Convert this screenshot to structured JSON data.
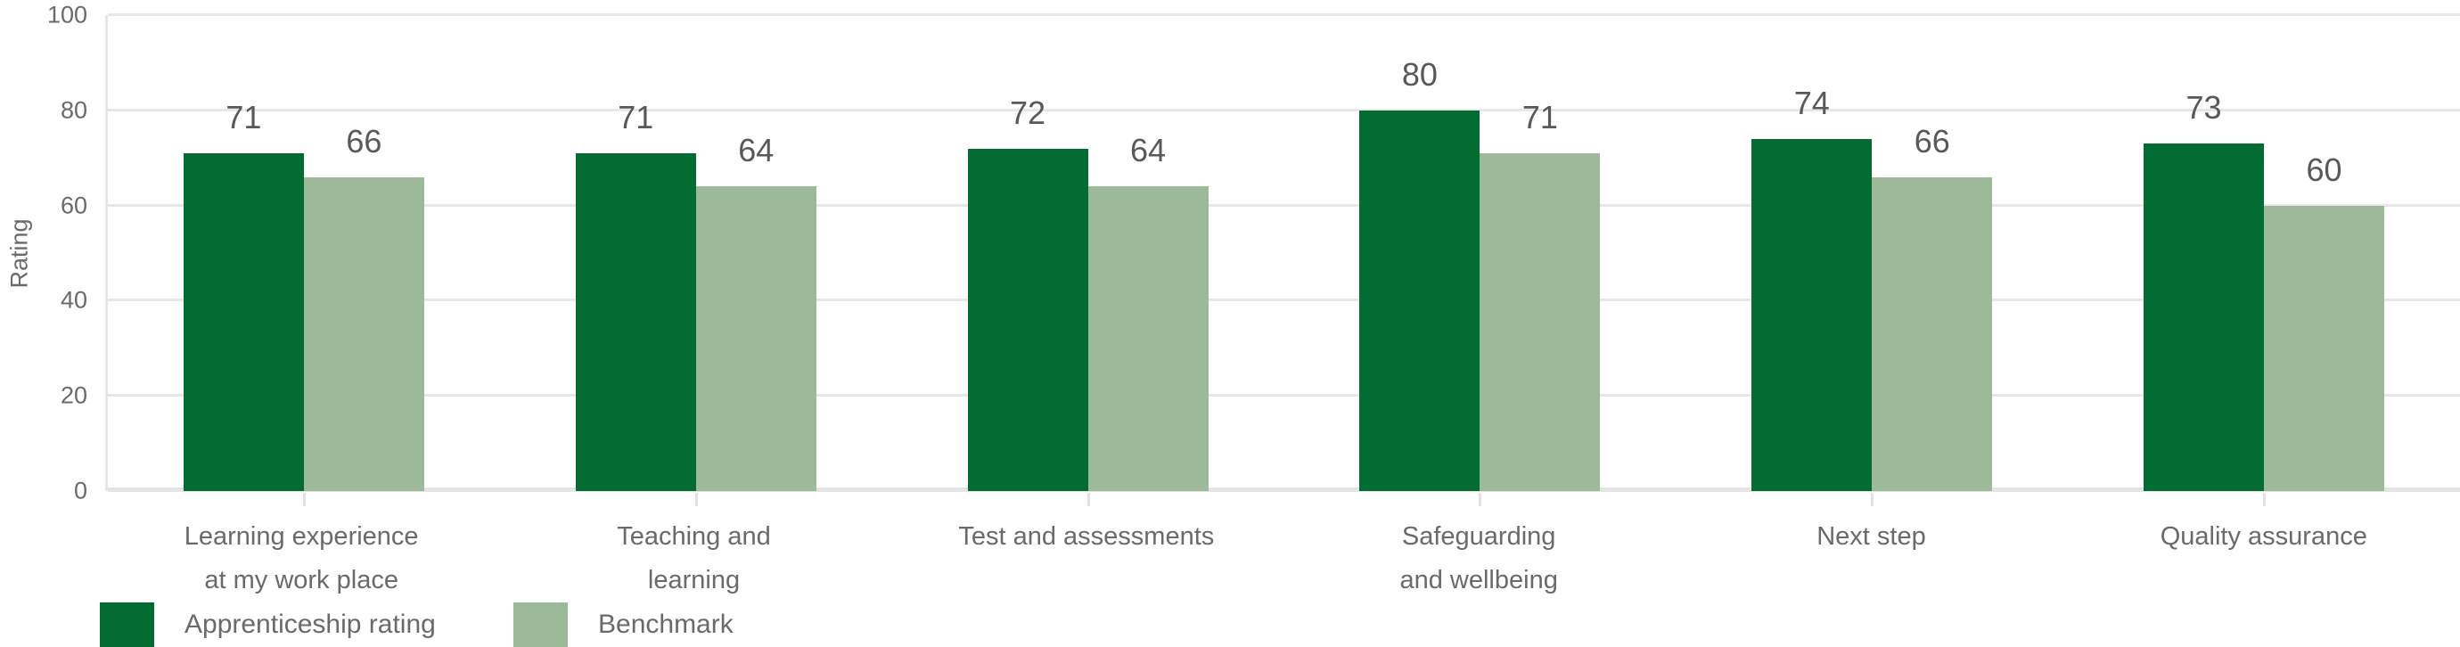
{
  "chart_data": {
    "type": "bar",
    "title": "",
    "categories": [
      "Learning experience\nat my work place",
      "Teaching and\nlearning",
      "Test and assessments",
      "Safeguarding\nand wellbeing",
      "Next step",
      "Quality assurance"
    ],
    "series": [
      {
        "name": "Apprenticeship rating",
        "color": "#046b32",
        "values": [
          71,
          71,
          72,
          80,
          74,
          73
        ]
      },
      {
        "name": "Benchmark",
        "color": "#9cba9a",
        "values": [
          66,
          64,
          64,
          71,
          66,
          60
        ]
      }
    ],
    "xlabel": "",
    "ylabel": "Rating",
    "ylim": [
      0,
      100
    ],
    "yticks": [
      0,
      20,
      40,
      60,
      80,
      100
    ],
    "grid": true,
    "data_labels": true,
    "legend_position": "bottom-left"
  },
  "colors": {
    "gridline": "#e7e7e7",
    "axis_line": "#e7e7e7",
    "tick_text": "#6a6a6a",
    "value_text": "#595959",
    "background": "#ffffff"
  }
}
